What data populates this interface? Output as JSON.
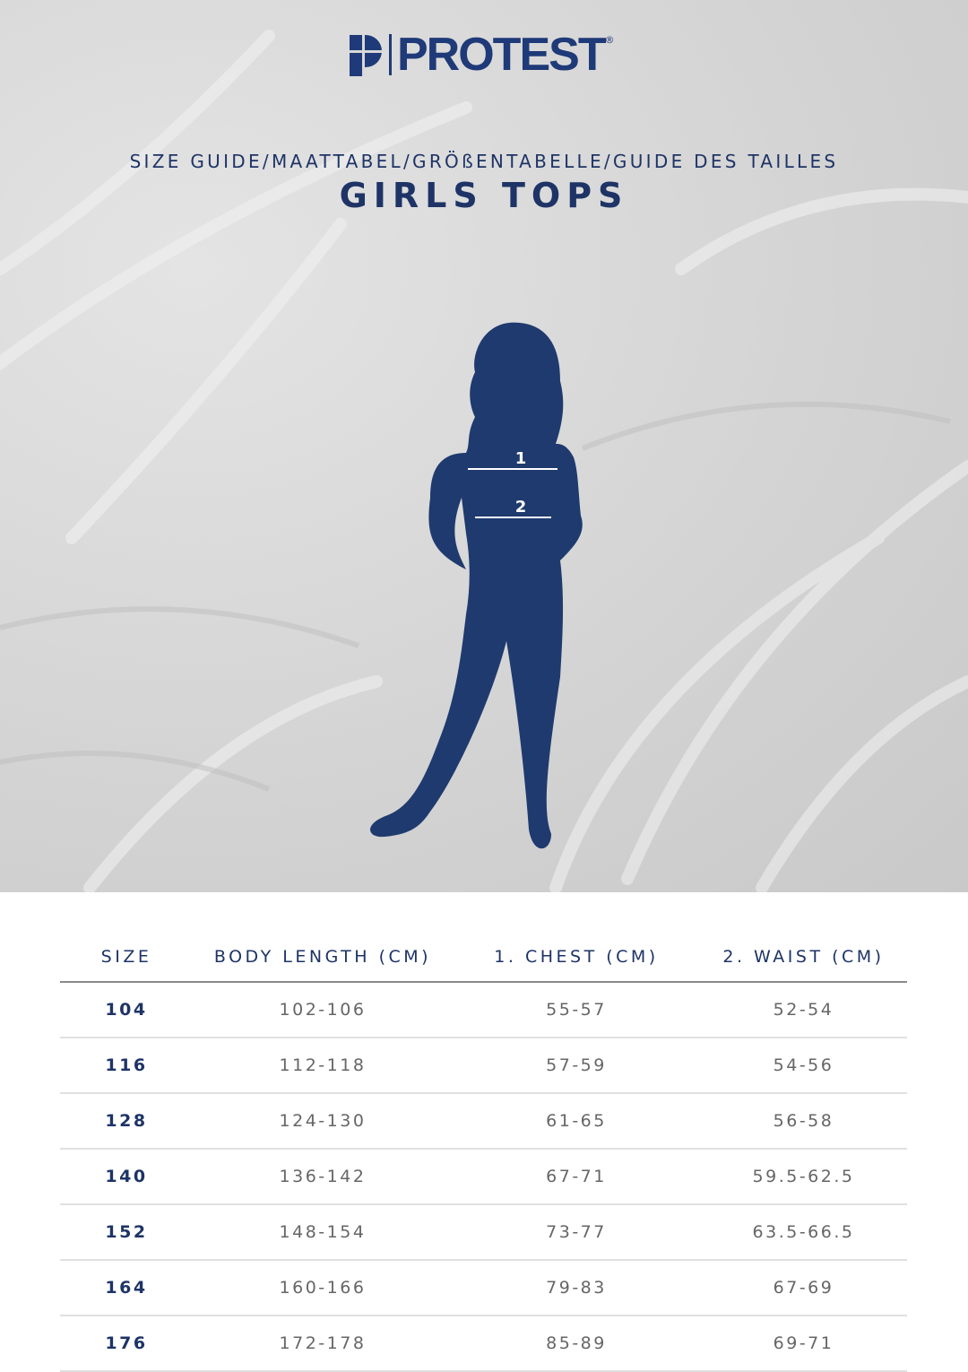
{
  "brand": {
    "name": "PROTEST",
    "registered": "®",
    "color": "#1f3a78"
  },
  "header": {
    "subtitle": "SIZE GUIDE/MAATTABEL/GRÖßENTABELLE/GUIDE DES TAILLES",
    "title": "GIRLS TOPS"
  },
  "figure": {
    "markers": [
      "1",
      "2"
    ],
    "color": "#1f3a6e"
  },
  "table": {
    "headers": [
      "SIZE",
      "BODY LENGTH (CM)",
      "1. CHEST (CM)",
      "2. WAIST (CM)"
    ],
    "rows": [
      [
        "104",
        "102-106",
        "55-57",
        "52-54"
      ],
      [
        "116",
        "112-118",
        "57-59",
        "54-56"
      ],
      [
        "128",
        "124-130",
        "61-65",
        "56-58"
      ],
      [
        "140",
        "136-142",
        "67-71",
        "59.5-62.5"
      ],
      [
        "152",
        "148-154",
        "73-77",
        "63.5-66.5"
      ],
      [
        "164",
        "160-166",
        "79-83",
        "67-69"
      ],
      [
        "176",
        "172-178",
        "85-89",
        "69-71"
      ]
    ]
  }
}
